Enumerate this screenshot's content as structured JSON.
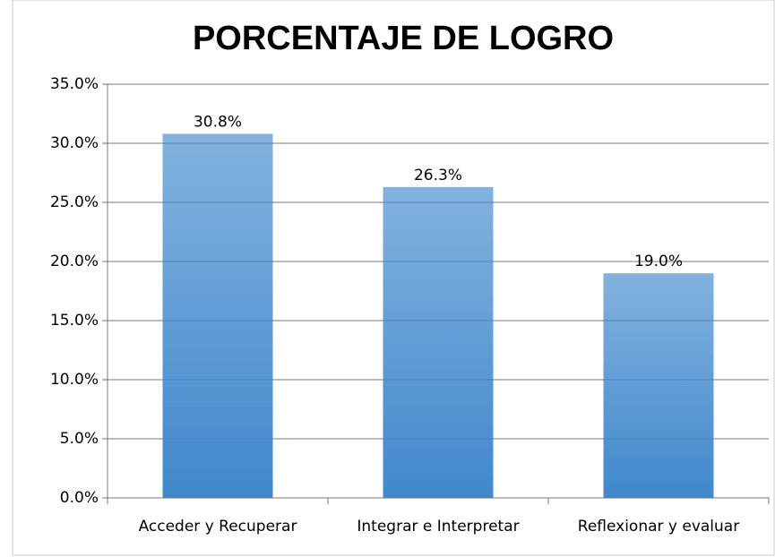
{
  "chart_data": {
    "type": "bar",
    "title": "PORCENTAJE DE LOGRO",
    "categories": [
      "Acceder y Recuperar",
      "Integrar e Interpretar",
      "Reflexionar y evaluar"
    ],
    "values": [
      30.8,
      26.3,
      19.0
    ],
    "value_labels": [
      "30.8%",
      "26.3%",
      "19.0%"
    ],
    "color": "#4088cc",
    "ylim": [
      0,
      35
    ],
    "yticks": [
      {
        "value": 0,
        "label": "0.0%"
      },
      {
        "value": 5,
        "label": "5.0%"
      },
      {
        "value": 10,
        "label": "10.0%"
      },
      {
        "value": 15,
        "label": "15.0%"
      },
      {
        "value": 20,
        "label": "20.0%"
      },
      {
        "value": 25,
        "label": "25.0%"
      },
      {
        "value": 30,
        "label": "30.0%"
      },
      {
        "value": 35,
        "label": "35.0%"
      }
    ],
    "grid": true
  }
}
